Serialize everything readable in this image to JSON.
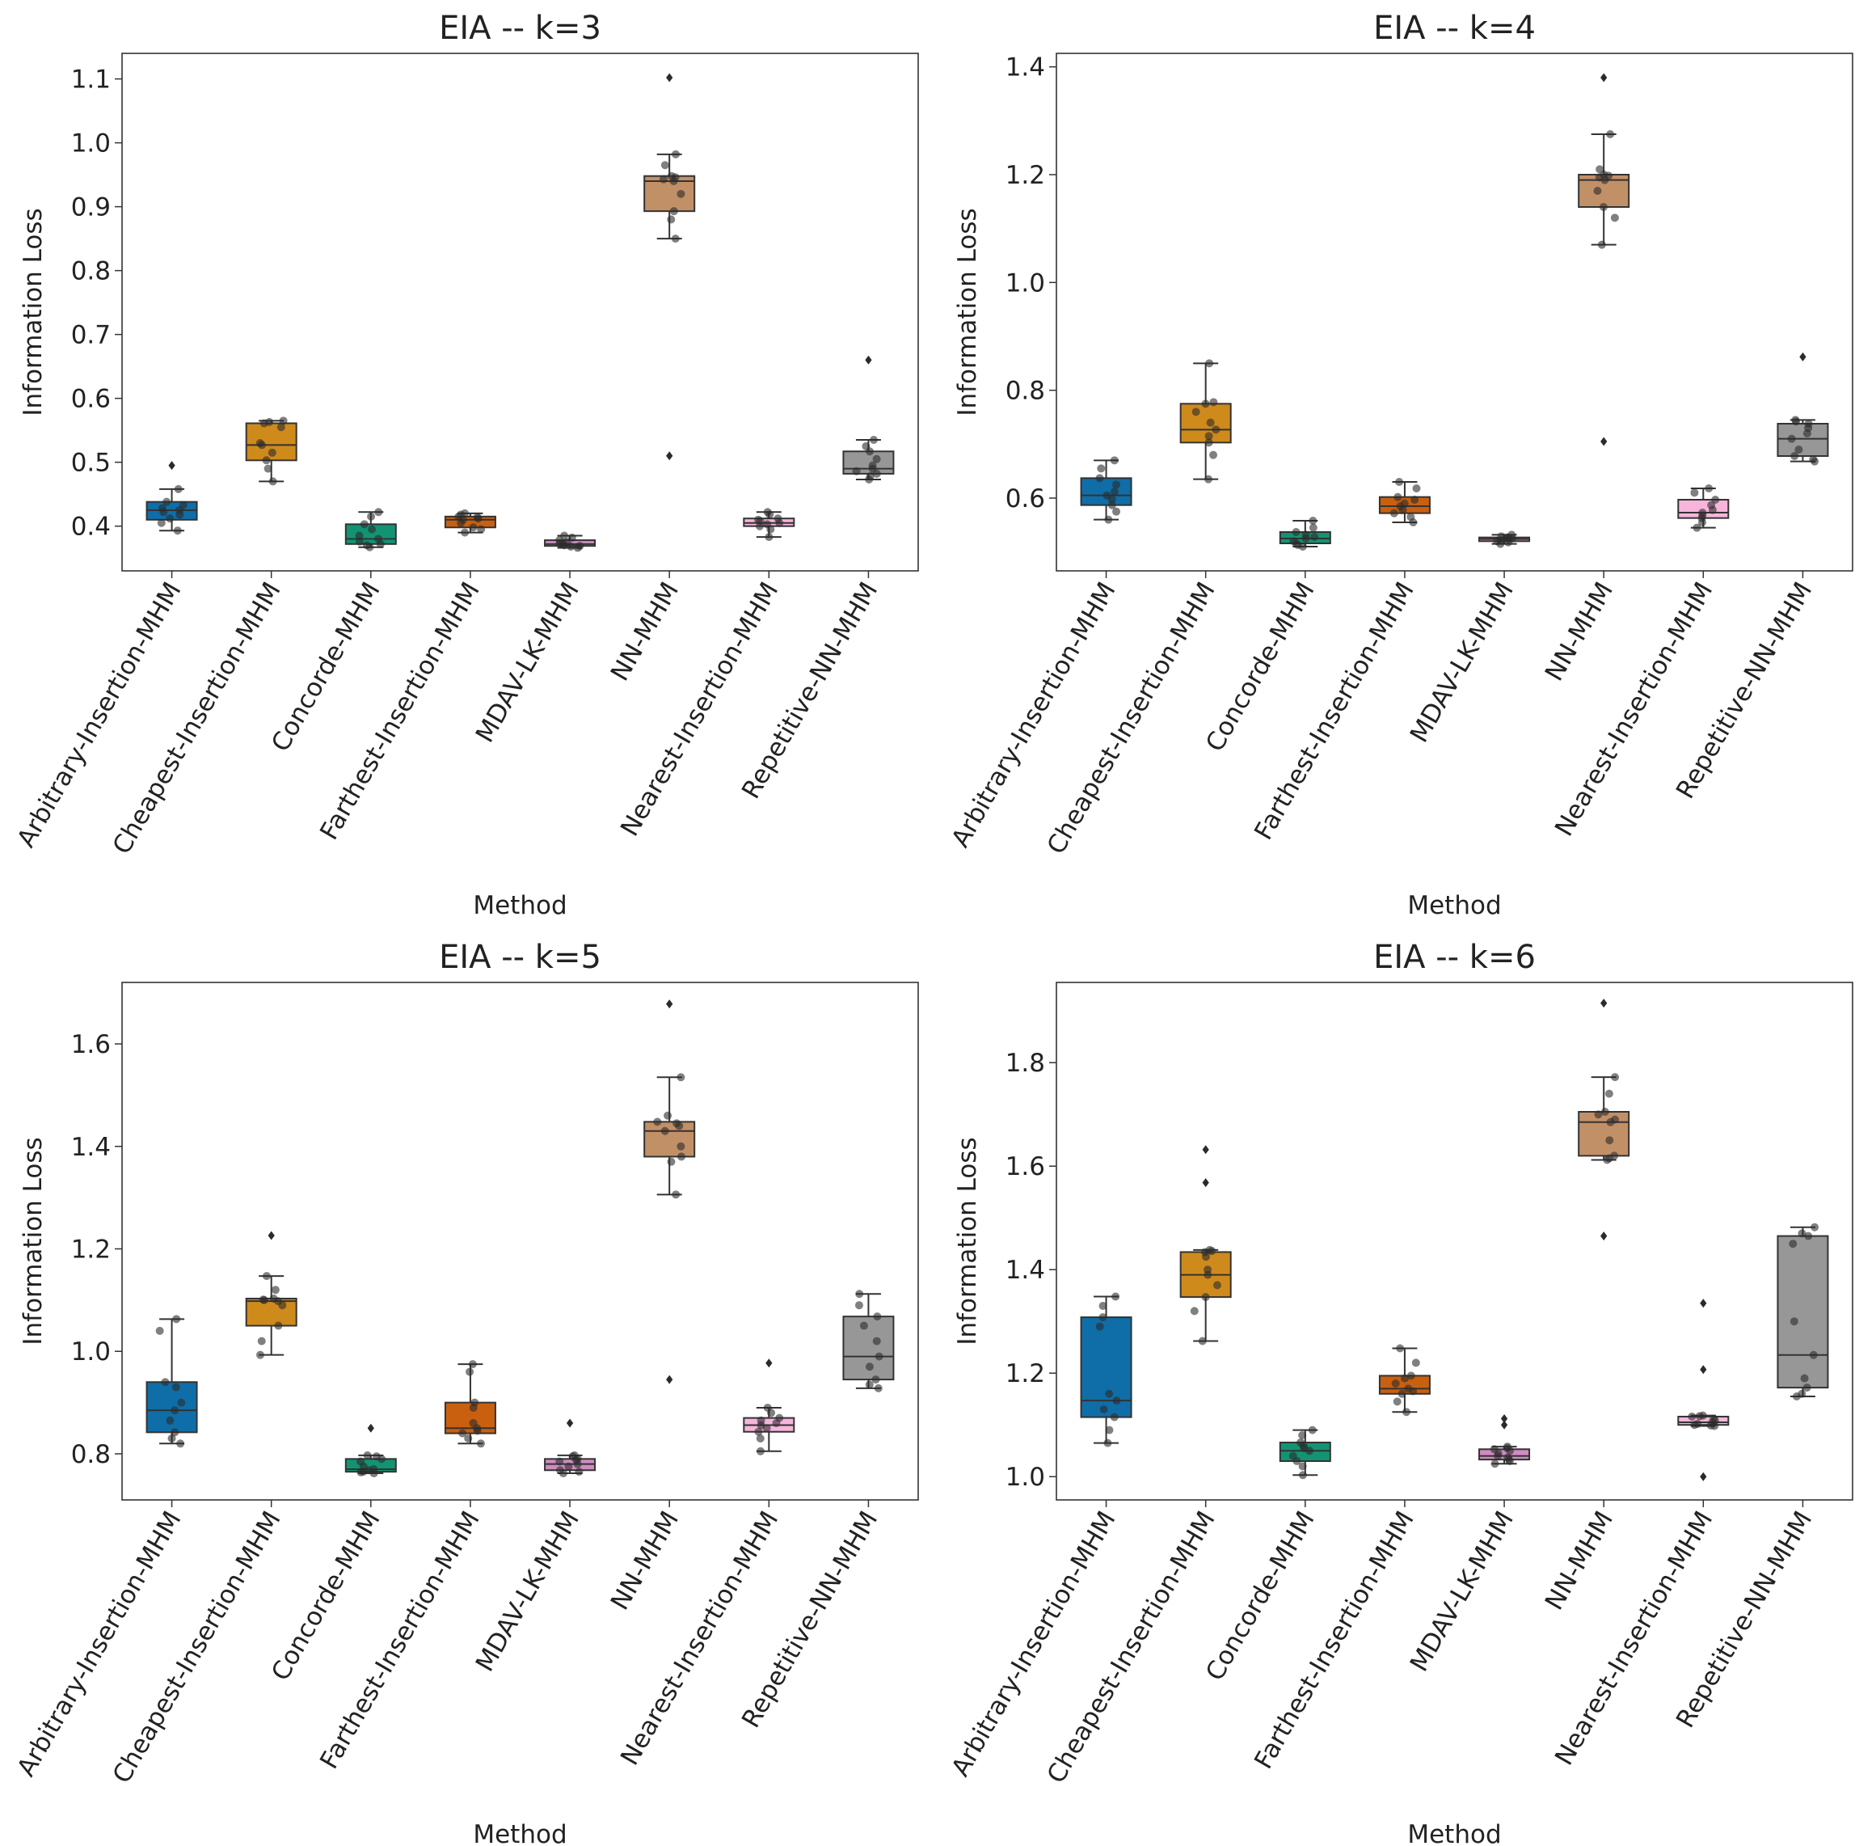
{
  "chart_data": [
    {
      "type": "box",
      "title": "EIA -- k=3",
      "xlabel": "Method",
      "ylabel": "Information Loss",
      "ylim": [
        0.33,
        1.14
      ],
      "yticks": [
        0.4,
        0.5,
        0.6,
        0.7,
        0.8,
        0.9,
        1.0,
        1.1
      ],
      "yticklabels": [
        "0.4",
        "0.5",
        "0.6",
        "0.7",
        "0.8",
        "0.9",
        "1.0",
        "1.1"
      ],
      "categories": [
        "Arbitrary-Insertion-MHM",
        "Cheapest-Insertion-MHM",
        "Concorde-MHM",
        "Farthest-Insertion-MHM",
        "MDAV-LK-MHM",
        "NN-MHM",
        "Nearest-Insertion-MHM",
        "Repetitive-NN-MHM"
      ],
      "boxes": [
        {
          "whislo": 0.393,
          "q1": 0.41,
          "med": 0.425,
          "q3": 0.438,
          "whishi": 0.458,
          "fliers": [
            0.495
          ],
          "points": [
            0.393,
            0.405,
            0.412,
            0.418,
            0.422,
            0.425,
            0.428,
            0.433,
            0.438,
            0.458
          ]
        },
        {
          "whislo": 0.47,
          "q1": 0.503,
          "med": 0.527,
          "q3": 0.561,
          "whishi": 0.565,
          "fliers": [],
          "points": [
            0.47,
            0.49,
            0.503,
            0.515,
            0.527,
            0.53,
            0.555,
            0.561,
            0.563,
            0.565
          ]
        },
        {
          "whislo": 0.367,
          "q1": 0.372,
          "med": 0.38,
          "q3": 0.403,
          "whishi": 0.422,
          "fliers": [],
          "points": [
            0.367,
            0.37,
            0.372,
            0.376,
            0.38,
            0.385,
            0.395,
            0.403,
            0.415,
            0.422
          ]
        },
        {
          "whislo": 0.39,
          "q1": 0.398,
          "med": 0.41,
          "q3": 0.415,
          "whishi": 0.42,
          "fliers": [],
          "points": [
            0.39,
            0.395,
            0.398,
            0.405,
            0.41,
            0.412,
            0.414,
            0.415,
            0.418,
            0.42
          ]
        },
        {
          "whislo": 0.366,
          "q1": 0.369,
          "med": 0.372,
          "q3": 0.378,
          "whishi": 0.385,
          "fliers": [],
          "points": [
            0.366,
            0.368,
            0.369,
            0.37,
            0.372,
            0.373,
            0.375,
            0.378,
            0.382,
            0.385
          ]
        },
        {
          "whislo": 0.85,
          "q1": 0.893,
          "med": 0.94,
          "q3": 0.948,
          "whishi": 0.982,
          "fliers": [
            1.102,
            0.51
          ],
          "points": [
            0.85,
            0.88,
            0.893,
            0.92,
            0.94,
            0.943,
            0.946,
            0.948,
            0.965,
            0.982
          ]
        },
        {
          "whislo": 0.383,
          "q1": 0.4,
          "med": 0.405,
          "q3": 0.412,
          "whishi": 0.422,
          "fliers": [],
          "points": [
            0.383,
            0.395,
            0.4,
            0.403,
            0.405,
            0.408,
            0.41,
            0.412,
            0.418,
            0.422
          ]
        },
        {
          "whislo": 0.473,
          "q1": 0.482,
          "med": 0.49,
          "q3": 0.517,
          "whishi": 0.535,
          "fliers": [
            0.66
          ],
          "points": [
            0.473,
            0.478,
            0.482,
            0.486,
            0.49,
            0.495,
            0.505,
            0.517,
            0.525,
            0.535
          ]
        }
      ]
    },
    {
      "type": "box",
      "title": "EIA -- k=4",
      "xlabel": "Method",
      "ylabel": "Information Loss",
      "ylim": [
        0.465,
        1.425
      ],
      "yticks": [
        0.6,
        0.8,
        1.0,
        1.2,
        1.4
      ],
      "yticklabels": [
        "0.6",
        "0.8",
        "1.0",
        "1.2",
        "1.4"
      ],
      "categories": [
        "Arbitrary-Insertion-MHM",
        "Cheapest-Insertion-MHM",
        "Concorde-MHM",
        "Farthest-Insertion-MHM",
        "MDAV-LK-MHM",
        "NN-MHM",
        "Nearest-Insertion-MHM",
        "Repetitive-NN-MHM"
      ],
      "boxes": [
        {
          "whislo": 0.56,
          "q1": 0.587,
          "med": 0.605,
          "q3": 0.637,
          "whishi": 0.67,
          "fliers": [],
          "points": [
            0.56,
            0.575,
            0.587,
            0.598,
            0.605,
            0.612,
            0.625,
            0.637,
            0.655,
            0.67
          ]
        },
        {
          "whislo": 0.635,
          "q1": 0.703,
          "med": 0.727,
          "q3": 0.775,
          "whishi": 0.85,
          "fliers": [],
          "points": [
            0.635,
            0.68,
            0.703,
            0.715,
            0.727,
            0.74,
            0.76,
            0.775,
            0.778,
            0.85
          ]
        },
        {
          "whislo": 0.51,
          "q1": 0.516,
          "med": 0.525,
          "q3": 0.537,
          "whishi": 0.558,
          "fliers": [],
          "points": [
            0.51,
            0.513,
            0.516,
            0.52,
            0.525,
            0.528,
            0.532,
            0.537,
            0.545,
            0.558
          ]
        },
        {
          "whislo": 0.555,
          "q1": 0.572,
          "med": 0.585,
          "q3": 0.602,
          "whishi": 0.63,
          "fliers": [],
          "points": [
            0.555,
            0.565,
            0.572,
            0.578,
            0.585,
            0.59,
            0.597,
            0.602,
            0.618,
            0.63
          ]
        },
        {
          "whislo": 0.515,
          "q1": 0.52,
          "med": 0.524,
          "q3": 0.527,
          "whishi": 0.532,
          "fliers": [],
          "points": [
            0.515,
            0.518,
            0.52,
            0.522,
            0.524,
            0.525,
            0.526,
            0.527,
            0.529,
            0.532
          ]
        },
        {
          "whislo": 1.07,
          "q1": 1.14,
          "med": 1.19,
          "q3": 1.2,
          "whishi": 1.275,
          "fliers": [
            1.38,
            0.705
          ],
          "points": [
            1.07,
            1.12,
            1.14,
            1.17,
            1.19,
            1.195,
            1.198,
            1.2,
            1.21,
            1.275
          ]
        },
        {
          "whislo": 0.545,
          "q1": 0.563,
          "med": 0.573,
          "q3": 0.597,
          "whishi": 0.618,
          "fliers": [],
          "points": [
            0.545,
            0.555,
            0.563,
            0.568,
            0.573,
            0.578,
            0.587,
            0.597,
            0.61,
            0.618
          ]
        },
        {
          "whislo": 0.668,
          "q1": 0.678,
          "med": 0.71,
          "q3": 0.738,
          "whishi": 0.745,
          "fliers": [
            0.862
          ],
          "points": [
            0.668,
            0.672,
            0.678,
            0.69,
            0.71,
            0.72,
            0.73,
            0.738,
            0.742,
            0.745
          ]
        }
      ]
    },
    {
      "type": "box",
      "title": "EIA -- k=5",
      "xlabel": "Method",
      "ylabel": "Information Loss",
      "ylim": [
        0.71,
        1.72
      ],
      "yticks": [
        0.8,
        1.0,
        1.2,
        1.4,
        1.6
      ],
      "yticklabels": [
        "0.8",
        "1.0",
        "1.2",
        "1.4",
        "1.6"
      ],
      "categories": [
        "Arbitrary-Insertion-MHM",
        "Cheapest-Insertion-MHM",
        "Concorde-MHM",
        "Farthest-Insertion-MHM",
        "MDAV-LK-MHM",
        "NN-MHM",
        "Nearest-Insertion-MHM",
        "Repetitive-NN-MHM"
      ],
      "boxes": [
        {
          "whislo": 0.82,
          "q1": 0.842,
          "med": 0.885,
          "q3": 0.94,
          "whishi": 1.063,
          "fliers": [],
          "points": [
            0.82,
            0.83,
            0.842,
            0.865,
            0.885,
            0.9,
            0.93,
            0.94,
            1.04,
            1.063
          ]
        },
        {
          "whislo": 0.993,
          "q1": 1.05,
          "med": 1.098,
          "q3": 1.103,
          "whishi": 1.147,
          "fliers": [
            1.226
          ],
          "points": [
            0.993,
            1.02,
            1.05,
            1.09,
            1.098,
            1.1,
            1.101,
            1.103,
            1.12,
            1.147
          ]
        },
        {
          "whislo": 0.762,
          "q1": 0.765,
          "med": 0.77,
          "q3": 0.79,
          "whishi": 0.797,
          "fliers": [
            0.85
          ],
          "points": [
            0.762,
            0.764,
            0.765,
            0.768,
            0.77,
            0.775,
            0.785,
            0.79,
            0.795,
            0.797
          ]
        },
        {
          "whislo": 0.82,
          "q1": 0.84,
          "med": 0.85,
          "q3": 0.9,
          "whishi": 0.975,
          "fliers": [],
          "points": [
            0.82,
            0.83,
            0.84,
            0.845,
            0.85,
            0.86,
            0.89,
            0.9,
            0.96,
            0.975
          ]
        },
        {
          "whislo": 0.762,
          "q1": 0.768,
          "med": 0.78,
          "q3": 0.79,
          "whishi": 0.797,
          "fliers": [
            0.86
          ],
          "points": [
            0.762,
            0.765,
            0.768,
            0.775,
            0.78,
            0.785,
            0.788,
            0.79,
            0.795,
            0.797
          ]
        },
        {
          "whislo": 1.306,
          "q1": 1.38,
          "med": 1.43,
          "q3": 1.448,
          "whishi": 1.535,
          "fliers": [
            1.678,
            0.945
          ],
          "points": [
            1.306,
            1.37,
            1.38,
            1.4,
            1.43,
            1.44,
            1.445,
            1.448,
            1.46,
            1.535
          ]
        },
        {
          "whislo": 0.805,
          "q1": 0.843,
          "med": 0.856,
          "q3": 0.87,
          "whishi": 0.89,
          "fliers": [
            0.977
          ],
          "points": [
            0.805,
            0.83,
            0.843,
            0.85,
            0.856,
            0.86,
            0.865,
            0.87,
            0.88,
            0.89
          ]
        },
        {
          "whislo": 0.928,
          "q1": 0.945,
          "med": 0.99,
          "q3": 1.068,
          "whishi": 1.112,
          "fliers": [],
          "points": [
            0.928,
            0.935,
            0.945,
            0.97,
            0.99,
            1.02,
            1.05,
            1.068,
            1.09,
            1.112
          ]
        }
      ]
    },
    {
      "type": "box",
      "title": "EIA -- k=6",
      "xlabel": "Method",
      "ylabel": "Information Loss",
      "ylim": [
        0.955,
        1.955
      ],
      "yticks": [
        1.0,
        1.2,
        1.4,
        1.6,
        1.8
      ],
      "yticklabels": [
        "1.0",
        "1.2",
        "1.4",
        "1.6",
        "1.8"
      ],
      "categories": [
        "Arbitrary-Insertion-MHM",
        "Cheapest-Insertion-MHM",
        "Concorde-MHM",
        "Farthest-Insertion-MHM",
        "MDAV-LK-MHM",
        "NN-MHM",
        "Nearest-Insertion-MHM",
        "Repetitive-NN-MHM"
      ],
      "boxes": [
        {
          "whislo": 1.065,
          "q1": 1.115,
          "med": 1.147,
          "q3": 1.308,
          "whishi": 1.348,
          "fliers": [],
          "points": [
            1.065,
            1.09,
            1.115,
            1.13,
            1.147,
            1.16,
            1.29,
            1.308,
            1.33,
            1.348
          ]
        },
        {
          "whislo": 1.262,
          "q1": 1.347,
          "med": 1.39,
          "q3": 1.434,
          "whishi": 1.438,
          "fliers": [
            1.632,
            1.568
          ],
          "points": [
            1.262,
            1.32,
            1.347,
            1.37,
            1.39,
            1.4,
            1.425,
            1.434,
            1.436,
            1.438
          ]
        },
        {
          "whislo": 1.003,
          "q1": 1.03,
          "med": 1.05,
          "q3": 1.066,
          "whishi": 1.09,
          "fliers": [],
          "points": [
            1.003,
            1.02,
            1.03,
            1.04,
            1.05,
            1.055,
            1.06,
            1.066,
            1.08,
            1.09
          ]
        },
        {
          "whislo": 1.125,
          "q1": 1.16,
          "med": 1.17,
          "q3": 1.195,
          "whishi": 1.248,
          "fliers": [],
          "points": [
            1.125,
            1.145,
            1.16,
            1.165,
            1.17,
            1.18,
            1.19,
            1.195,
            1.22,
            1.248
          ]
        },
        {
          "whislo": 1.025,
          "q1": 1.033,
          "med": 1.04,
          "q3": 1.053,
          "whishi": 1.058,
          "fliers": [
            1.112,
            1.1
          ],
          "points": [
            1.025,
            1.03,
            1.033,
            1.037,
            1.04,
            1.045,
            1.05,
            1.053,
            1.055,
            1.058
          ]
        },
        {
          "whislo": 1.612,
          "q1": 1.62,
          "med": 1.685,
          "q3": 1.705,
          "whishi": 1.772,
          "fliers": [
            1.915,
            1.465
          ],
          "points": [
            1.612,
            1.615,
            1.62,
            1.65,
            1.685,
            1.69,
            1.7,
            1.705,
            1.74,
            1.772
          ]
        },
        {
          "whislo": 1.098,
          "q1": 1.1,
          "med": 1.105,
          "q3": 1.116,
          "whishi": 1.118,
          "fliers": [
            1.335,
            1.207,
            1.0
          ],
          "points": [
            1.098,
            1.099,
            1.1,
            1.102,
            1.105,
            1.108,
            1.112,
            1.116,
            1.117,
            1.118
          ]
        },
        {
          "whislo": 1.155,
          "q1": 1.172,
          "med": 1.235,
          "q3": 1.465,
          "whishi": 1.482,
          "fliers": [],
          "points": [
            1.155,
            1.16,
            1.172,
            1.19,
            1.235,
            1.3,
            1.45,
            1.465,
            1.47,
            1.482
          ]
        }
      ]
    }
  ],
  "colors": {
    "Arbitrary-Insertion-MHM": "#0f6ea8",
    "Cheapest-Insertion-MHM": "#cf8a1c",
    "Concorde-MHM": "#129473",
    "Farthest-Insertion-MHM": "#c9600f",
    "MDAV-LK-MHM": "#cf8cc0",
    "NN-MHM": "#c29067",
    "Nearest-Insertion-MHM": "#f7b5dc",
    "Repetitive-NN-MHM": "#979797",
    "line": "#333333",
    "point": "#2b2b2b"
  }
}
